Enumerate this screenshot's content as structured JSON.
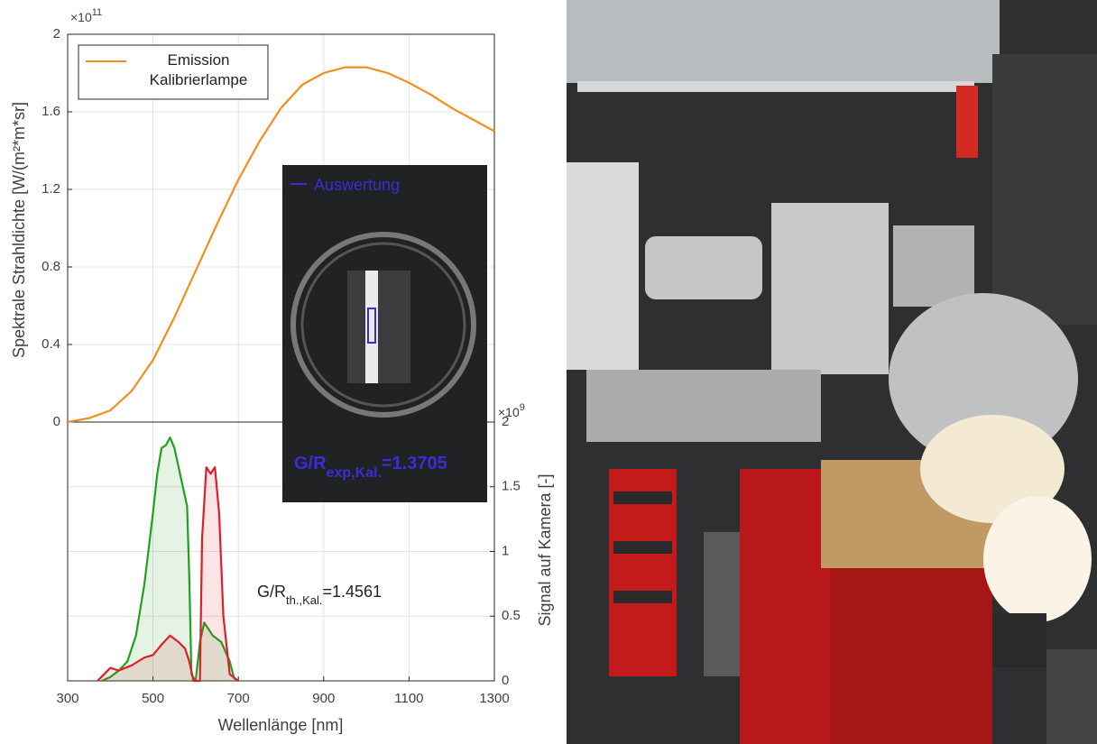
{
  "chart_data": {
    "type": "line",
    "xlabel": "Wellenlänge [nm]",
    "ylabel": "Spektrale Strahldichte [W/(m²*m*sr]",
    "y2label": "Signal auf Kamera [-]",
    "y_multiplier": "×10",
    "y_exponent": "11",
    "y2_multiplier": "×10",
    "y2_exponent": "9",
    "xlim": [
      300,
      1300
    ],
    "xticks": [
      300,
      500,
      700,
      900,
      1100,
      1300
    ],
    "ylim": [
      0,
      2
    ],
    "yticks": [
      0,
      0.4,
      0.8,
      1.2,
      1.6,
      2
    ],
    "y2lim": [
      0,
      2
    ],
    "y2ticks": [
      0,
      0.5,
      1,
      1.5,
      2
    ],
    "grid": true,
    "legend": "upper left",
    "series": [
      {
        "name": "Emission Kalibrierlampe",
        "color": "#f28e1c",
        "axis": "y",
        "x": [
          300,
          350,
          400,
          450,
          500,
          550,
          600,
          650,
          700,
          750,
          800,
          850,
          900,
          950,
          1000,
          1050,
          1100,
          1150,
          1200,
          1250,
          1300
        ],
        "values": [
          0,
          0.02,
          0.06,
          0.16,
          0.32,
          0.54,
          0.78,
          1.02,
          1.25,
          1.45,
          1.62,
          1.74,
          1.8,
          1.83,
          1.83,
          1.8,
          1.75,
          1.69,
          1.62,
          1.56,
          1.5
        ]
      },
      {
        "color": "#22a01e",
        "axis": "y2",
        "fill": true,
        "x": [
          380,
          400,
          420,
          440,
          460,
          480,
          500,
          510,
          520,
          530,
          540,
          550,
          560,
          570,
          580,
          585,
          590,
          600,
          610,
          620,
          640,
          660,
          680,
          690,
          700
        ],
        "values": [
          0,
          0.03,
          0.08,
          0.15,
          0.35,
          0.75,
          1.3,
          1.6,
          1.8,
          1.82,
          1.88,
          1.8,
          1.65,
          1.5,
          1.35,
          0.8,
          0.05,
          0,
          0.3,
          0.45,
          0.35,
          0.3,
          0.15,
          0.02,
          0
        ]
      },
      {
        "color": "#d82128",
        "axis": "y2",
        "fill": true,
        "x": [
          370,
          385,
          400,
          420,
          450,
          480,
          500,
          520,
          540,
          560,
          575,
          585,
          595,
          610,
          615,
          625,
          635,
          645,
          655,
          665,
          680,
          700
        ],
        "values": [
          0,
          0.05,
          0.1,
          0.08,
          0.12,
          0.18,
          0.2,
          0.28,
          0.35,
          0.3,
          0.25,
          0.15,
          0,
          0,
          1.1,
          1.65,
          1.6,
          1.65,
          1.3,
          0.5,
          0.05,
          0
        ]
      }
    ],
    "annotation": {
      "main": "G/R",
      "sub": "th.,Kal.",
      "rest": "=1.4561"
    },
    "inset": {
      "legend": "Auswertung",
      "main": "G/R",
      "sub": "exp,Kal.",
      "rest": "=1.3705"
    }
  }
}
